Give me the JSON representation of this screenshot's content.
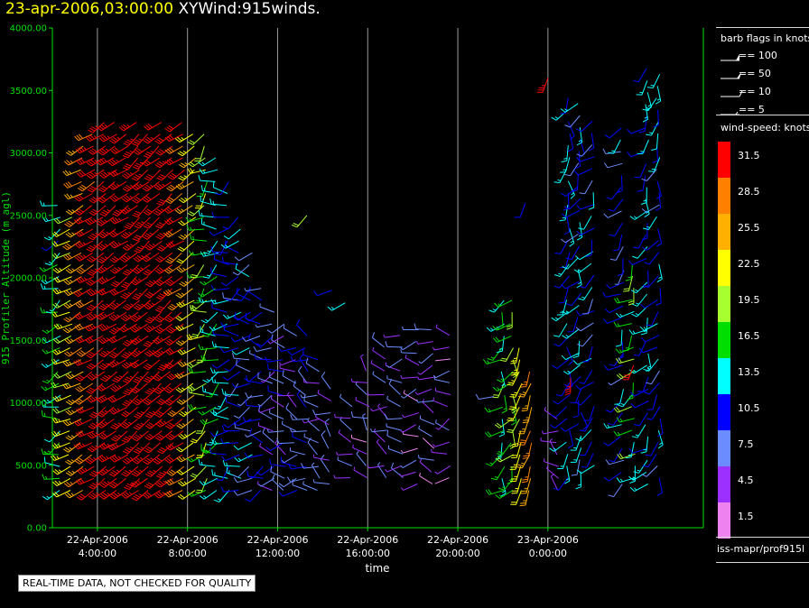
{
  "title": {
    "date_text": "23-apr-2006,03:00:00",
    "product_text": "XYWind:915winds."
  },
  "quality_note": "REAL-TIME DATA, NOT CHECKED FOR QUALITY",
  "source_label": "iss-mapr/prof915l",
  "legend": {
    "barb_title": "barb flags in knots",
    "barb_items": [
      {
        "label": "== 100",
        "icon": "flag-100-barb-icon"
      },
      {
        "label": "== 50",
        "icon": "flag-50-barb-icon"
      },
      {
        "label": "== 10",
        "icon": "full-barb-icon"
      },
      {
        "label": "== 5",
        "icon": "half-barb-icon"
      }
    ],
    "speed_title": "wind-speed: knots",
    "speed_items": [
      {
        "label": "31.5",
        "color": "#ff0000"
      },
      {
        "label": "28.5",
        "color": "#ff8000"
      },
      {
        "label": "25.5",
        "color": "#ffb000"
      },
      {
        "label": "22.5",
        "color": "#ffff00"
      },
      {
        "label": "19.5",
        "color": "#a8ff30"
      },
      {
        "label": "16.5",
        "color": "#00dd00"
      },
      {
        "label": "13.5",
        "color": "#00ffff"
      },
      {
        "label": "10.5",
        "color": "#0000ff"
      },
      {
        "label": "7.5",
        "color": "#6a8cff"
      },
      {
        "label": "4.5",
        "color": "#9b30ff"
      },
      {
        "label": "1.5",
        "color": "#ee82ee"
      }
    ]
  },
  "chart_data": {
    "type": "scatter",
    "marker": "wind-barb",
    "ylabel": "915 Profiler Altitude (m agl)",
    "xlabel": "time",
    "ylim": [
      0,
      4000
    ],
    "xlim": [
      2.0,
      30.9
    ],
    "x_unit": "hours from 22-Apr-2006 00:00",
    "yticks": [
      "0.00",
      "500.00",
      "1000.00",
      "1500.00",
      "2000.00",
      "2500.00",
      "3000.00",
      "3500.00",
      "4000.00"
    ],
    "xticks": [
      {
        "x": 4,
        "line1": "22-Apr-2006",
        "line2": "4:00:00"
      },
      {
        "x": 8,
        "line1": "22-Apr-2006",
        "line2": "8:00:00"
      },
      {
        "x": 12,
        "line1": "22-Apr-2006",
        "line2": "12:00:00"
      },
      {
        "x": 16,
        "line1": "22-Apr-2006",
        "line2": "16:00:00"
      },
      {
        "x": 20,
        "line1": "22-Apr-2006",
        "line2": "20:00:00"
      },
      {
        "x": 24,
        "line1": "23-Apr-2006",
        "line2": "0:00:00"
      }
    ],
    "grid": "vertical",
    "profiles": [
      {
        "t": 2.3,
        "z_min": 300,
        "z_max": 2600,
        "speed": 14,
        "dir": 250
      },
      {
        "t": 2.8,
        "z_min": 300,
        "z_max": 2500,
        "speed": 22,
        "dir": 245
      },
      {
        "t": 3.3,
        "z_min": 300,
        "z_max": 3100,
        "speed": 26,
        "dir": 240
      },
      {
        "t": 3.8,
        "z_min": 300,
        "z_max": 3200,
        "speed": 31,
        "dir": 240
      },
      {
        "t": 4.3,
        "z_min": 300,
        "z_max": 3250,
        "speed": 33,
        "dir": 235
      },
      {
        "t": 4.8,
        "z_min": 300,
        "z_max": 3250,
        "speed": 34,
        "dir": 235
      },
      {
        "t": 5.3,
        "z_min": 300,
        "z_max": 3200,
        "speed": 33,
        "dir": 235
      },
      {
        "t": 5.8,
        "z_min": 300,
        "z_max": 3250,
        "speed": 34,
        "dir": 230
      },
      {
        "t": 6.3,
        "z_min": 300,
        "z_max": 3200,
        "speed": 34,
        "dir": 230
      },
      {
        "t": 6.8,
        "z_min": 300,
        "z_max": 3250,
        "speed": 33,
        "dir": 230
      },
      {
        "t": 7.3,
        "z_min": 300,
        "z_max": 3200,
        "speed": 32,
        "dir": 230
      },
      {
        "t": 7.8,
        "z_min": 300,
        "z_max": 3250,
        "speed": 30,
        "dir": 235
      },
      {
        "t": 8.3,
        "z_min": 300,
        "z_max": 3200,
        "speed": 24,
        "dir": 235
      },
      {
        "t": 8.8,
        "z_min": 300,
        "z_max": 3150,
        "speed": 19,
        "dir": 240
      },
      {
        "t": 9.3,
        "z_min": 300,
        "z_max": 3000,
        "speed": 15,
        "dir": 245
      },
      {
        "t": 9.8,
        "z_min": 300,
        "z_max": 2850,
        "speed": 12,
        "dir": 250
      },
      {
        "t": 10.3,
        "z_min": 300,
        "z_max": 2500,
        "speed": 11,
        "dir": 255
      },
      {
        "t": 10.8,
        "z_min": 300,
        "z_max": 2200,
        "speed": 10,
        "dir": 260
      },
      {
        "t": 11.3,
        "z_min": 300,
        "z_max": 1950,
        "speed": 9,
        "dir": 265
      },
      {
        "t": 11.8,
        "z_min": 300,
        "z_max": 1800,
        "speed": 8,
        "dir": 270
      },
      {
        "t": 12.3,
        "z_min": 300,
        "z_max": 1700,
        "speed": 7,
        "dir": 275
      },
      {
        "t": 12.8,
        "z_min": 300,
        "z_max": 1600,
        "speed": 8,
        "dir": 280
      },
      {
        "t": 13.3,
        "z_min": 300,
        "z_max": 1550,
        "speed": 9,
        "dir": 285
      },
      {
        "t": 13.8,
        "z_min": 300,
        "z_max": 1400,
        "speed": 7,
        "dir": 290
      },
      {
        "t": 14.3,
        "z_min": 350,
        "z_max": 1200,
        "speed": 6,
        "dir": 300
      },
      {
        "t": 15.3,
        "z_min": 400,
        "z_max": 1000,
        "speed": 5,
        "dir": 310
      },
      {
        "t": 16.0,
        "z_min": 400,
        "z_max": 1300,
        "speed": 5,
        "dir": 300
      },
      {
        "t": 16.8,
        "z_min": 400,
        "z_max": 1500,
        "speed": 6,
        "dir": 290
      },
      {
        "t": 17.5,
        "z_min": 400,
        "z_max": 1600,
        "speed": 6,
        "dir": 280
      },
      {
        "t": 18.2,
        "z_min": 350,
        "z_max": 1650,
        "speed": 5,
        "dir": 275
      },
      {
        "t": 18.9,
        "z_min": 350,
        "z_max": 1650,
        "speed": 5,
        "dir": 270
      },
      {
        "t": 19.6,
        "z_min": 400,
        "z_max": 1600,
        "speed": 5,
        "dir": 260
      },
      {
        "t": 22.0,
        "z_min": 300,
        "z_max": 1900,
        "speed": 16,
        "dir": 210
      },
      {
        "t": 22.4,
        "z_min": 300,
        "z_max": 1850,
        "speed": 18,
        "dir": 205
      },
      {
        "t": 22.8,
        "z_min": 300,
        "z_max": 1450,
        "speed": 22,
        "dir": 200
      },
      {
        "t": 23.2,
        "z_min": 300,
        "z_max": 1300,
        "speed": 26,
        "dir": 200
      },
      {
        "t": 24.4,
        "z_min": 300,
        "z_max": 900,
        "speed": 4,
        "dir": 300
      },
      {
        "t": 24.9,
        "z_min": 400,
        "z_max": 3450,
        "speed": 12,
        "dir": 190
      },
      {
        "t": 25.4,
        "z_min": 450,
        "z_max": 3400,
        "speed": 11,
        "dir": 200
      },
      {
        "t": 26.0,
        "z_min": 500,
        "z_max": 3300,
        "speed": 10,
        "dir": 210
      },
      {
        "t": 27.3,
        "z_min": 350,
        "z_max": 3200,
        "speed": 10,
        "dir": 220
      },
      {
        "t": 27.8,
        "z_min": 400,
        "z_max": 2200,
        "speed": 16,
        "dir": 215
      },
      {
        "t": 28.4,
        "z_min": 350,
        "z_max": 3700,
        "speed": 12,
        "dir": 210
      },
      {
        "t": 28.9,
        "z_min": 400,
        "z_max": 3650,
        "speed": 11,
        "dir": 205
      }
    ],
    "isolated_barbs": [
      {
        "t": 13.3,
        "z": 2500,
        "speed": 18,
        "dir": 220
      },
      {
        "t": 14.4,
        "z": 1900,
        "speed": 11,
        "dir": 250
      },
      {
        "t": 15.0,
        "z": 1800,
        "speed": 13,
        "dir": 240
      },
      {
        "t": 21.6,
        "z": 1050,
        "speed": 8,
        "dir": 260
      },
      {
        "t": 23.0,
        "z": 2600,
        "speed": 10,
        "dir": 200
      },
      {
        "t": 24.0,
        "z": 3600,
        "speed": 34,
        "dir": 200
      },
      {
        "t": 25.0,
        "z": 1200,
        "speed": 33,
        "dir": 180
      },
      {
        "t": 27.8,
        "z": 1300,
        "speed": 30,
        "dir": 200
      }
    ]
  }
}
